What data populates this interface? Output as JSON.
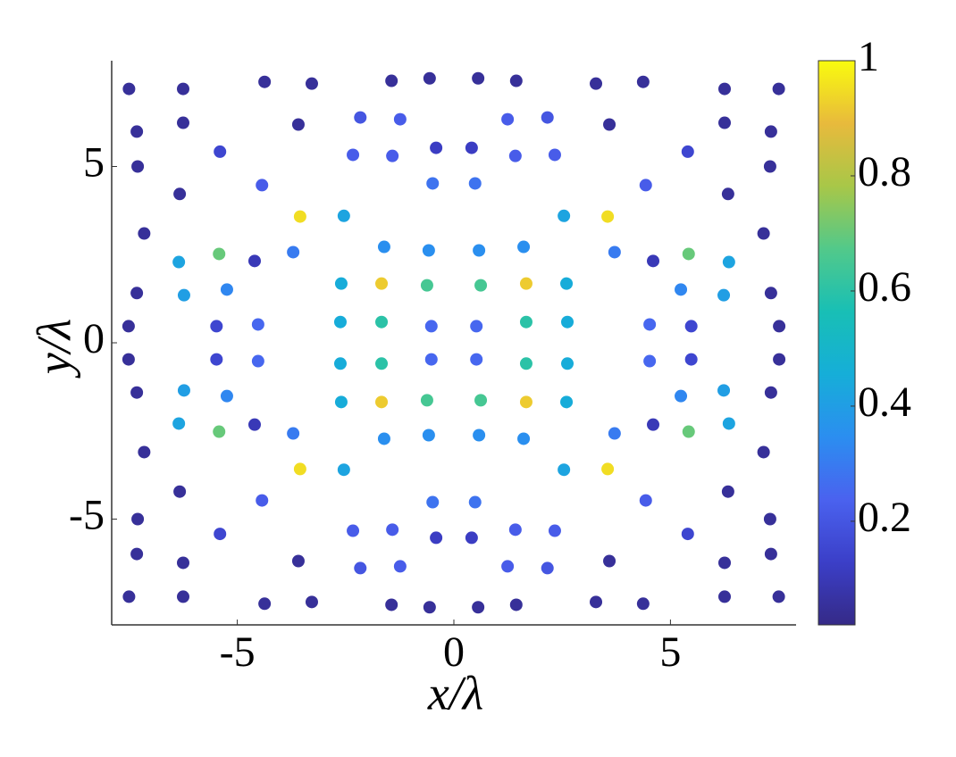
{
  "chart_data": {
    "type": "scatter",
    "x_label": "x/λ",
    "y_label": "y/λ",
    "xlim": [
      -7.9,
      7.9
    ],
    "ylim": [
      -8,
      8
    ],
    "xticks": [
      -5,
      0,
      5
    ],
    "yticks": [
      -5,
      0,
      5
    ],
    "clim": [
      0.02,
      1
    ],
    "cticks": [
      0.2,
      0.4,
      0.6,
      0.8,
      1
    ],
    "colormap": [
      "#352a87",
      "#3b3fc8",
      "#4a62ef",
      "#2b8ef0",
      "#16aed8",
      "#18bfb5",
      "#52c98a",
      "#a8c748",
      "#e8ba3c",
      "#f9fb0e"
    ],
    "x": [
      7.5,
      -7.5,
      7.5,
      -7.5,
      6.25,
      -6.25,
      6.25,
      -6.25,
      4.37,
      -4.37,
      4.37,
      -4.37,
      3.28,
      -3.28,
      3.28,
      -3.28,
      1.44,
      -1.44,
      1.44,
      -1.44,
      0.56,
      -0.56,
      0.56,
      -0.56,
      7.32,
      -7.32,
      7.32,
      -7.32,
      6.25,
      -6.25,
      6.25,
      -6.25,
      3.59,
      -3.59,
      3.59,
      -3.59,
      2.16,
      -2.16,
      2.16,
      -2.16,
      1.24,
      -1.24,
      1.24,
      -1.24,
      7.3,
      -7.3,
      7.3,
      -7.3,
      5.4,
      -5.4,
      5.4,
      -5.4,
      2.33,
      -2.33,
      2.33,
      -2.33,
      1.42,
      -1.42,
      1.42,
      -1.42,
      0.41,
      -0.41,
      0.41,
      -0.41,
      6.33,
      -6.33,
      6.33,
      -6.33,
      4.43,
      -4.43,
      4.43,
      -4.43,
      0.49,
      -0.49,
      0.49,
      -0.49,
      7.15,
      -7.15,
      7.15,
      -7.15,
      3.55,
      -3.55,
      3.55,
      -3.55,
      2.54,
      -2.54,
      2.54,
      -2.54,
      1.61,
      -1.61,
      1.61,
      -1.61,
      0.58,
      -0.58,
      0.58,
      -0.58,
      6.35,
      -6.35,
      6.35,
      -6.35,
      5.42,
      -5.42,
      5.42,
      -5.42,
      4.6,
      -4.6,
      4.6,
      -4.6,
      3.71,
      -3.71,
      3.71,
      -3.71,
      7.32,
      -7.32,
      7.32,
      -7.32,
      6.23,
      -6.23,
      6.23,
      -6.23,
      5.24,
      -5.24,
      5.24,
      -5.24,
      2.6,
      -2.6,
      2.6,
      -2.6,
      1.67,
      -1.67,
      1.67,
      -1.67,
      0.62,
      -0.62,
      0.62,
      -0.62,
      7.51,
      -7.51,
      7.51,
      -7.51,
      5.48,
      -5.48,
      5.48,
      -5.48,
      4.52,
      -4.52,
      4.52,
      -4.52,
      2.62,
      -2.62,
      2.62,
      -2.62,
      1.67,
      -1.67,
      1.67,
      -1.67,
      0.52,
      -0.52,
      0.52,
      -0.52
    ],
    "y": [
      7.2,
      7.2,
      -7.2,
      -7.2,
      7.2,
      7.2,
      -7.2,
      -7.2,
      7.4,
      7.4,
      -7.4,
      -7.4,
      7.35,
      7.35,
      -7.35,
      -7.35,
      7.43,
      7.43,
      -7.43,
      -7.43,
      7.5,
      7.5,
      -7.5,
      -7.5,
      5.99,
      5.99,
      -5.99,
      -5.99,
      6.24,
      6.24,
      -6.24,
      -6.24,
      6.19,
      6.19,
      -6.19,
      -6.19,
      6.39,
      6.39,
      -6.39,
      -6.39,
      6.34,
      6.34,
      -6.34,
      -6.34,
      5.0,
      5.0,
      -5.0,
      -5.0,
      5.42,
      5.42,
      -5.42,
      -5.42,
      5.33,
      5.33,
      -5.33,
      -5.33,
      5.3,
      5.3,
      -5.3,
      -5.3,
      5.53,
      5.53,
      -5.53,
      -5.53,
      4.22,
      4.22,
      -4.22,
      -4.22,
      4.47,
      4.47,
      -4.47,
      -4.47,
      4.52,
      4.52,
      -4.52,
      -4.52,
      3.1,
      3.1,
      -3.1,
      -3.1,
      3.58,
      3.58,
      -3.58,
      -3.58,
      3.6,
      3.6,
      -3.6,
      -3.6,
      2.72,
      2.72,
      -2.72,
      -2.72,
      2.62,
      2.62,
      -2.62,
      -2.62,
      2.29,
      2.29,
      -2.29,
      -2.29,
      2.52,
      2.52,
      -2.52,
      -2.52,
      2.32,
      2.32,
      -2.32,
      -2.32,
      2.57,
      2.57,
      -2.57,
      -2.57,
      1.41,
      1.41,
      -1.41,
      -1.41,
      1.35,
      1.35,
      -1.35,
      -1.35,
      1.51,
      1.51,
      -1.51,
      -1.51,
      1.68,
      1.68,
      -1.68,
      -1.68,
      1.68,
      1.68,
      -1.68,
      -1.68,
      1.63,
      1.63,
      -1.63,
      -1.63,
      0.47,
      0.47,
      -0.47,
      -0.47,
      0.47,
      0.47,
      -0.47,
      -0.47,
      0.52,
      0.52,
      -0.52,
      -0.52,
      0.59,
      0.59,
      -0.59,
      -0.59,
      0.59,
      0.59,
      -0.59,
      -0.59,
      0.47,
      0.47,
      -0.47,
      -0.47
    ],
    "values": [
      0.05,
      0.05,
      0.05,
      0.05,
      0.05,
      0.05,
      0.05,
      0.05,
      0.05,
      0.05,
      0.05,
      0.05,
      0.05,
      0.05,
      0.05,
      0.05,
      0.05,
      0.05,
      0.05,
      0.05,
      0.05,
      0.05,
      0.05,
      0.05,
      0.05,
      0.05,
      0.05,
      0.05,
      0.05,
      0.05,
      0.05,
      0.05,
      0.05,
      0.05,
      0.05,
      0.05,
      0.2,
      0.2,
      0.2,
      0.2,
      0.22,
      0.22,
      0.22,
      0.22,
      0.05,
      0.05,
      0.05,
      0.05,
      0.15,
      0.15,
      0.15,
      0.15,
      0.22,
      0.22,
      0.22,
      0.22,
      0.22,
      0.22,
      0.22,
      0.22,
      0.12,
      0.12,
      0.12,
      0.12,
      0.05,
      0.05,
      0.05,
      0.05,
      0.22,
      0.22,
      0.22,
      0.22,
      0.28,
      0.28,
      0.28,
      0.28,
      0.05,
      0.05,
      0.05,
      0.05,
      0.95,
      0.95,
      0.95,
      0.95,
      0.42,
      0.42,
      0.42,
      0.42,
      0.35,
      0.35,
      0.35,
      0.35,
      0.35,
      0.35,
      0.35,
      0.35,
      0.42,
      0.42,
      0.42,
      0.42,
      0.7,
      0.7,
      0.7,
      0.7,
      0.1,
      0.1,
      0.1,
      0.1,
      0.3,
      0.3,
      0.3,
      0.3,
      0.05,
      0.05,
      0.05,
      0.05,
      0.4,
      0.4,
      0.4,
      0.4,
      0.33,
      0.33,
      0.33,
      0.33,
      0.45,
      0.45,
      0.45,
      0.45,
      0.92,
      0.92,
      0.92,
      0.92,
      0.65,
      0.65,
      0.65,
      0.65,
      0.05,
      0.05,
      0.05,
      0.05,
      0.15,
      0.15,
      0.15,
      0.15,
      0.25,
      0.25,
      0.25,
      0.25,
      0.45,
      0.45,
      0.45,
      0.45,
      0.6,
      0.6,
      0.6,
      0.6,
      0.25,
      0.25,
      0.25,
      0.25
    ]
  }
}
